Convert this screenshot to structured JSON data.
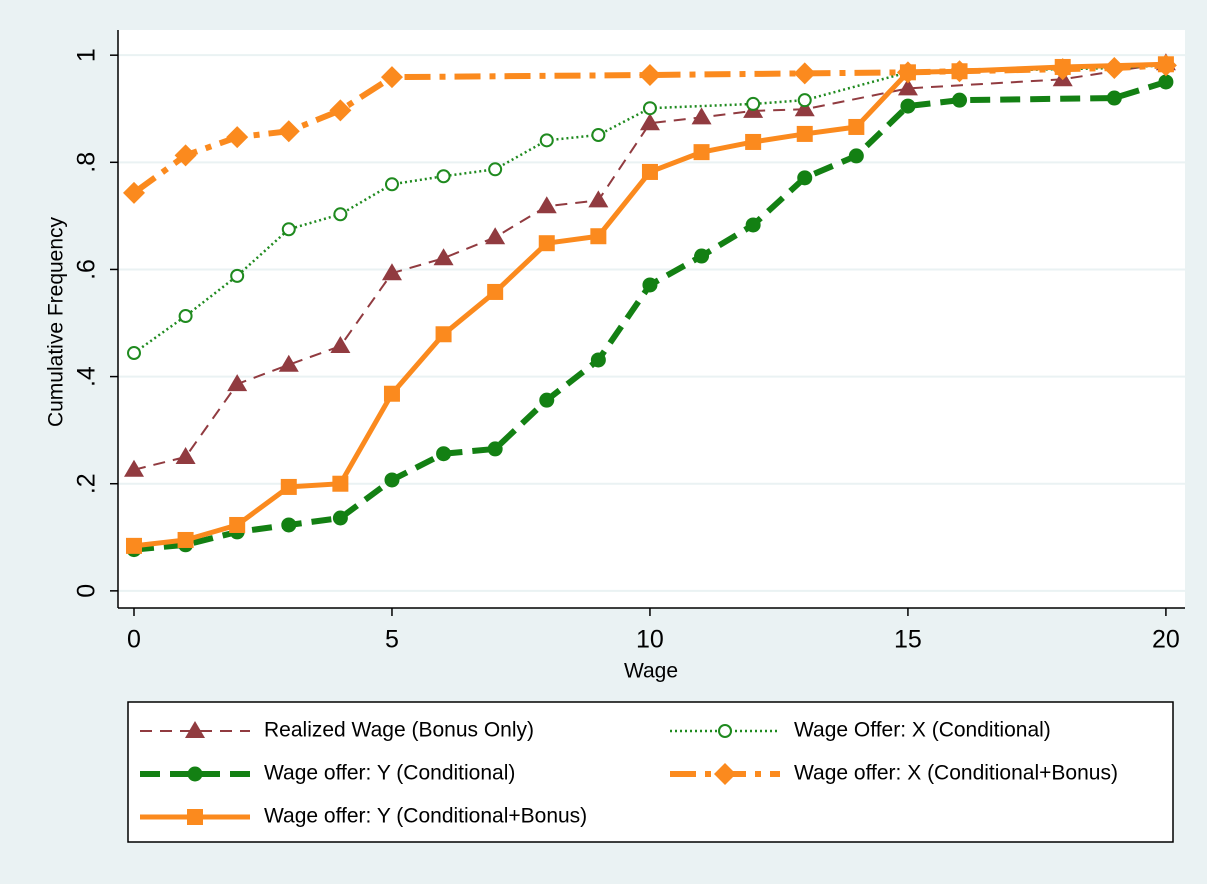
{
  "chart_data": {
    "type": "line",
    "x_label": "Wage",
    "y_label": "Cumulative Frequency",
    "xlim": [
      -0.31,
      20.37
    ],
    "ylim": [
      -0.032,
      1.047
    ],
    "xticks": [
      0,
      5,
      10,
      15,
      20
    ],
    "yticks": [
      0,
      {
        "value": 0.2,
        "label": ".2"
      },
      {
        "value": 0.4,
        "label": ".4"
      },
      {
        "value": 0.6,
        "label": ".6"
      },
      {
        "value": 0.8,
        "label": ".8"
      },
      1
    ],
    "grid": true,
    "legend": "bottom",
    "series": [
      {
        "name": "Realized Wage (Bonus Only)",
        "color": "#913b40",
        "marker": "triangle",
        "line_style": "dash",
        "x": [
          0,
          1,
          2,
          3,
          4,
          5,
          6,
          7,
          8,
          9,
          10,
          11,
          12,
          13,
          15,
          18,
          20
        ],
        "values": [
          0.226,
          0.25,
          0.386,
          0.422,
          0.457,
          0.593,
          0.621,
          0.66,
          0.718,
          0.729,
          0.873,
          0.884,
          0.896,
          0.899,
          0.938,
          0.955,
          0.985
        ]
      },
      {
        "name": "Wage Offer: X (Conditional)",
        "color": "#1f8a1f",
        "marker": "open-circle",
        "line_style": "dot",
        "x": [
          0,
          1,
          2,
          3,
          4,
          5,
          6,
          7,
          8,
          9,
          10,
          12,
          13,
          15,
          19,
          20
        ],
        "values": [
          0.444,
          0.513,
          0.588,
          0.675,
          0.703,
          0.759,
          0.774,
          0.787,
          0.841,
          0.851,
          0.901,
          0.909,
          0.916,
          0.968,
          0.976,
          0.981
        ]
      },
      {
        "name": "Wage offer: Y (Conditional)",
        "color": "#138013",
        "marker": "circle",
        "line_style": "long-dash",
        "x": [
          0,
          1,
          2,
          3,
          4,
          5,
          6,
          7,
          8,
          9,
          10,
          11,
          12,
          13,
          14,
          15,
          16,
          19,
          20
        ],
        "values": [
          0.077,
          0.086,
          0.11,
          0.123,
          0.136,
          0.207,
          0.256,
          0.265,
          0.356,
          0.431,
          0.571,
          0.625,
          0.683,
          0.771,
          0.812,
          0.905,
          0.916,
          0.92,
          0.95
        ]
      },
      {
        "name": "Wage offer: X (Conditional+Bonus)",
        "color": "#fb8a1e",
        "marker": "diamond",
        "line_style": "dash-dot",
        "x": [
          0,
          1,
          2,
          3,
          4,
          5,
          10,
          13,
          15,
          16,
          18,
          19,
          20
        ],
        "values": [
          0.743,
          0.813,
          0.847,
          0.858,
          0.897,
          0.959,
          0.963,
          0.966,
          0.968,
          0.97,
          0.974,
          0.976,
          0.981
        ]
      },
      {
        "name": "Wage offer: Y (Conditional+Bonus)",
        "color": "#fb8a1e",
        "marker": "square",
        "line_style": "solid",
        "x": [
          0,
          1,
          2,
          3,
          4,
          5,
          6,
          7,
          8,
          9,
          10,
          11,
          12,
          13,
          14,
          15,
          16,
          18,
          20
        ],
        "values": [
          0.084,
          0.095,
          0.123,
          0.194,
          0.2,
          0.368,
          0.479,
          0.558,
          0.649,
          0.662,
          0.782,
          0.819,
          0.838,
          0.853,
          0.866,
          0.968,
          0.97,
          0.978,
          0.983
        ]
      }
    ]
  }
}
